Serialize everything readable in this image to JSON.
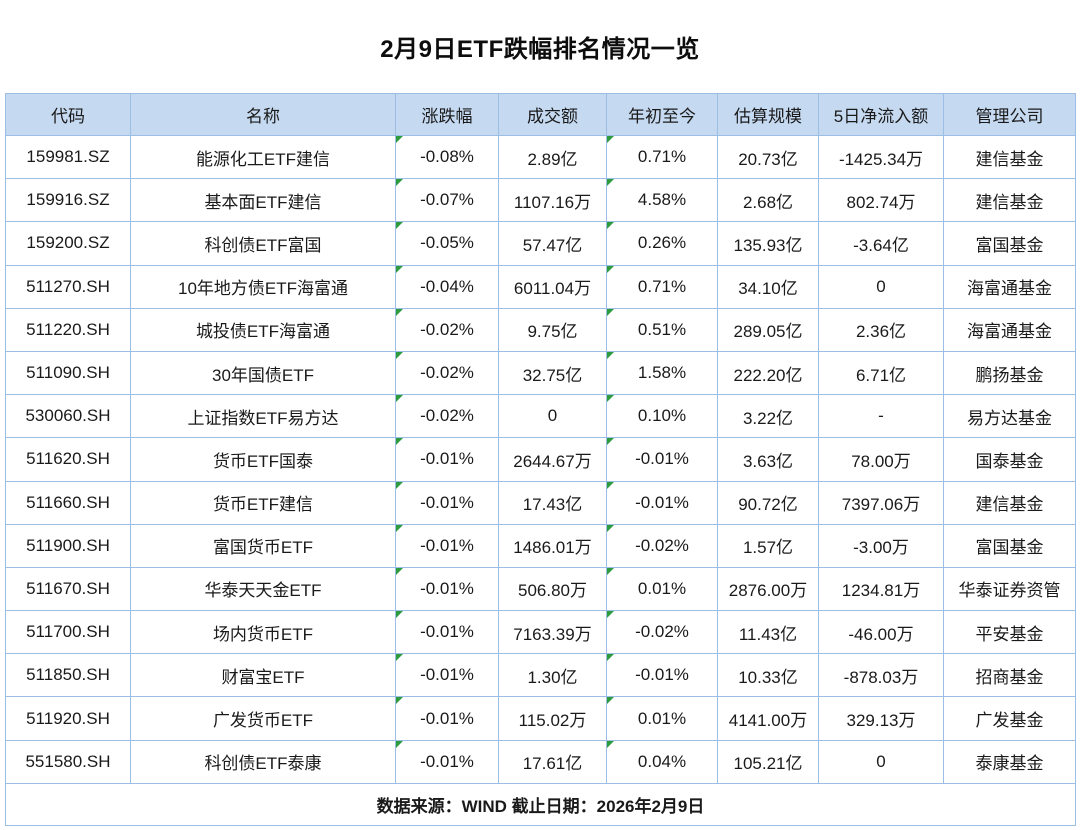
{
  "chart_data": {
    "type": "table",
    "title": "2月9日ETF跌幅排名情况一览",
    "columns": [
      "代码",
      "名称",
      "涨跌幅",
      "成交额",
      "年初至今",
      "估算规模",
      "5日净流入额",
      "管理公司"
    ],
    "rows": [
      [
        "159981.SZ",
        "能源化工ETF建信",
        "-0.08%",
        "2.89亿",
        "0.71%",
        "20.73亿",
        "-1425.34万",
        "建信基金"
      ],
      [
        "159916.SZ",
        "基本面ETF建信",
        "-0.07%",
        "1107.16万",
        "4.58%",
        "2.68亿",
        "802.74万",
        "建信基金"
      ],
      [
        "159200.SZ",
        "科创债ETF富国",
        "-0.05%",
        "57.47亿",
        "0.26%",
        "135.93亿",
        "-3.64亿",
        "富国基金"
      ],
      [
        "511270.SH",
        "10年地方债ETF海富通",
        "-0.04%",
        "6011.04万",
        "0.71%",
        "34.10亿",
        "0",
        "海富通基金"
      ],
      [
        "511220.SH",
        "城投债ETF海富通",
        "-0.02%",
        "9.75亿",
        "0.51%",
        "289.05亿",
        "2.36亿",
        "海富通基金"
      ],
      [
        "511090.SH",
        "30年国债ETF",
        "-0.02%",
        "32.75亿",
        "1.58%",
        "222.20亿",
        "6.71亿",
        "鹏扬基金"
      ],
      [
        "530060.SH",
        "上证指数ETF易方达",
        "-0.02%",
        "0",
        "0.10%",
        "3.22亿",
        "-",
        "易方达基金"
      ],
      [
        "511620.SH",
        "货币ETF国泰",
        "-0.01%",
        "2644.67万",
        "-0.01%",
        "3.63亿",
        "78.00万",
        "国泰基金"
      ],
      [
        "511660.SH",
        "货币ETF建信",
        "-0.01%",
        "17.43亿",
        "-0.01%",
        "90.72亿",
        "7397.06万",
        "建信基金"
      ],
      [
        "511900.SH",
        "富国货币ETF",
        "-0.01%",
        "1486.01万",
        "-0.02%",
        "1.57亿",
        "-3.00万",
        "富国基金"
      ],
      [
        "511670.SH",
        "华泰天天金ETF",
        "-0.01%",
        "506.80万",
        "0.01%",
        "2876.00万",
        "1234.81万",
        "华泰证券资管"
      ],
      [
        "511700.SH",
        "场内货币ETF",
        "-0.01%",
        "7163.39万",
        "-0.02%",
        "11.43亿",
        "-46.00万",
        "平安基金"
      ],
      [
        "511850.SH",
        "财富宝ETF",
        "-0.01%",
        "1.30亿",
        "-0.01%",
        "10.33亿",
        "-878.03万",
        "招商基金"
      ],
      [
        "511920.SH",
        "广发货币ETF",
        "-0.01%",
        "115.02万",
        "0.01%",
        "4141.00万",
        "329.13万",
        "广发基金"
      ],
      [
        "551580.SH",
        "科创债ETF泰康",
        "-0.01%",
        "17.61亿",
        "0.04%",
        "105.21亿",
        "0",
        "泰康基金"
      ]
    ],
    "flagged_columns": [
      2,
      4
    ],
    "footer": "数据来源：WIND 截止日期：2026年2月9日",
    "layout_hints": {
      "grid": "on",
      "header_position": "top",
      "footer_merged": true
    }
  },
  "colors": {
    "header_bg": "#c5d9f1",
    "border": "#9cbde4",
    "flag_green": "#2e9b3f",
    "text": "#1a1a1a",
    "background": "#ffffff"
  }
}
